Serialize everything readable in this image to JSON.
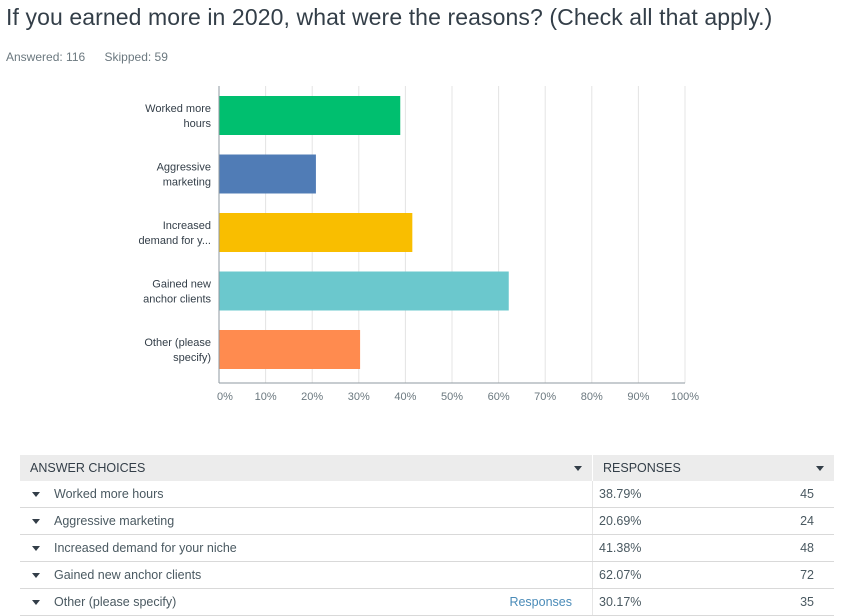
{
  "question": {
    "title": "If you earned more in 2020, what were the reasons? (Check all that apply.)",
    "answered": "Answered: 116",
    "skipped": "Skipped: 59"
  },
  "chart_data": {
    "type": "bar",
    "orientation": "horizontal",
    "categories": [
      [
        "Worked more",
        "hours"
      ],
      [
        "Aggressive",
        "marketing"
      ],
      [
        "Increased",
        "demand for y..."
      ],
      [
        "Gained new",
        "anchor clients"
      ],
      [
        "Other (please",
        "specify)"
      ]
    ],
    "values": [
      38.79,
      20.69,
      41.38,
      62.07,
      30.17
    ],
    "colors": [
      "#00bf6f",
      "#507cb6",
      "#f9be00",
      "#6bc8cd",
      "#ff8b4f"
    ],
    "xlim": [
      0,
      100
    ],
    "ticks": [
      0,
      10,
      20,
      30,
      40,
      50,
      60,
      70,
      80,
      90,
      100
    ],
    "tick_labels": [
      "0%",
      "10%",
      "20%",
      "30%",
      "40%",
      "50%",
      "60%",
      "70%",
      "80%",
      "90%",
      "100%"
    ],
    "grid": true
  },
  "table": {
    "headers": {
      "choices": "ANSWER CHOICES",
      "responses": "RESPONSES"
    },
    "rows": [
      {
        "choice": "Worked more hours",
        "link": "",
        "pct": "38.79%",
        "count": "45"
      },
      {
        "choice": "Aggressive marketing",
        "link": "",
        "pct": "20.69%",
        "count": "24"
      },
      {
        "choice": "Increased demand for your niche",
        "link": "",
        "pct": "41.38%",
        "count": "48"
      },
      {
        "choice": "Gained new anchor clients",
        "link": "",
        "pct": "62.07%",
        "count": "72"
      },
      {
        "choice": "Other (please specify)",
        "link": "Responses",
        "pct": "30.17%",
        "count": "35"
      }
    ]
  }
}
